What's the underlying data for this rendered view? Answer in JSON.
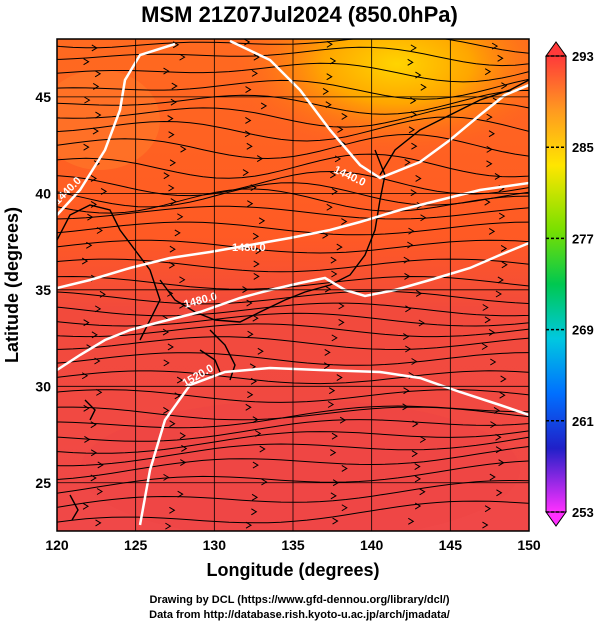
{
  "title": "MSM 21Z07Jul2024 (850.0hPa)",
  "map": {
    "x_axis_label": "Longitude (degrees)",
    "y_axis_label": "Latitude  (degrees)",
    "lon_range": [
      120,
      150
    ],
    "lat_range": [
      22.5,
      48
    ],
    "lon_ticks": [
      "120",
      "125",
      "130",
      "135",
      "140",
      "145",
      "150"
    ],
    "lat_ticks": [
      "25",
      "30",
      "35",
      "40",
      "45"
    ],
    "contour_labels": [
      "1440.0",
      "1440.0",
      "1480.0",
      "1520.0",
      "1480.0"
    ],
    "colors": {
      "field_warm": "#f04a3a",
      "field_mid": "#ff7a1a",
      "field_cool": "#ffcc00",
      "contour": "#ffffff",
      "streamline": "#000000",
      "coast": "#000000"
    }
  },
  "colorbar": {
    "labels": [
      "293",
      "285",
      "277",
      "269",
      "261",
      "253"
    ],
    "range": [
      253,
      293
    ]
  },
  "credits": {
    "line1": "Drawing by DCL (https://www.gfd-dennou.org/library/dcl/)",
    "line2": "Data from http://database.rish.kyoto-u.ac.jp/arch/jmadata/"
  }
}
